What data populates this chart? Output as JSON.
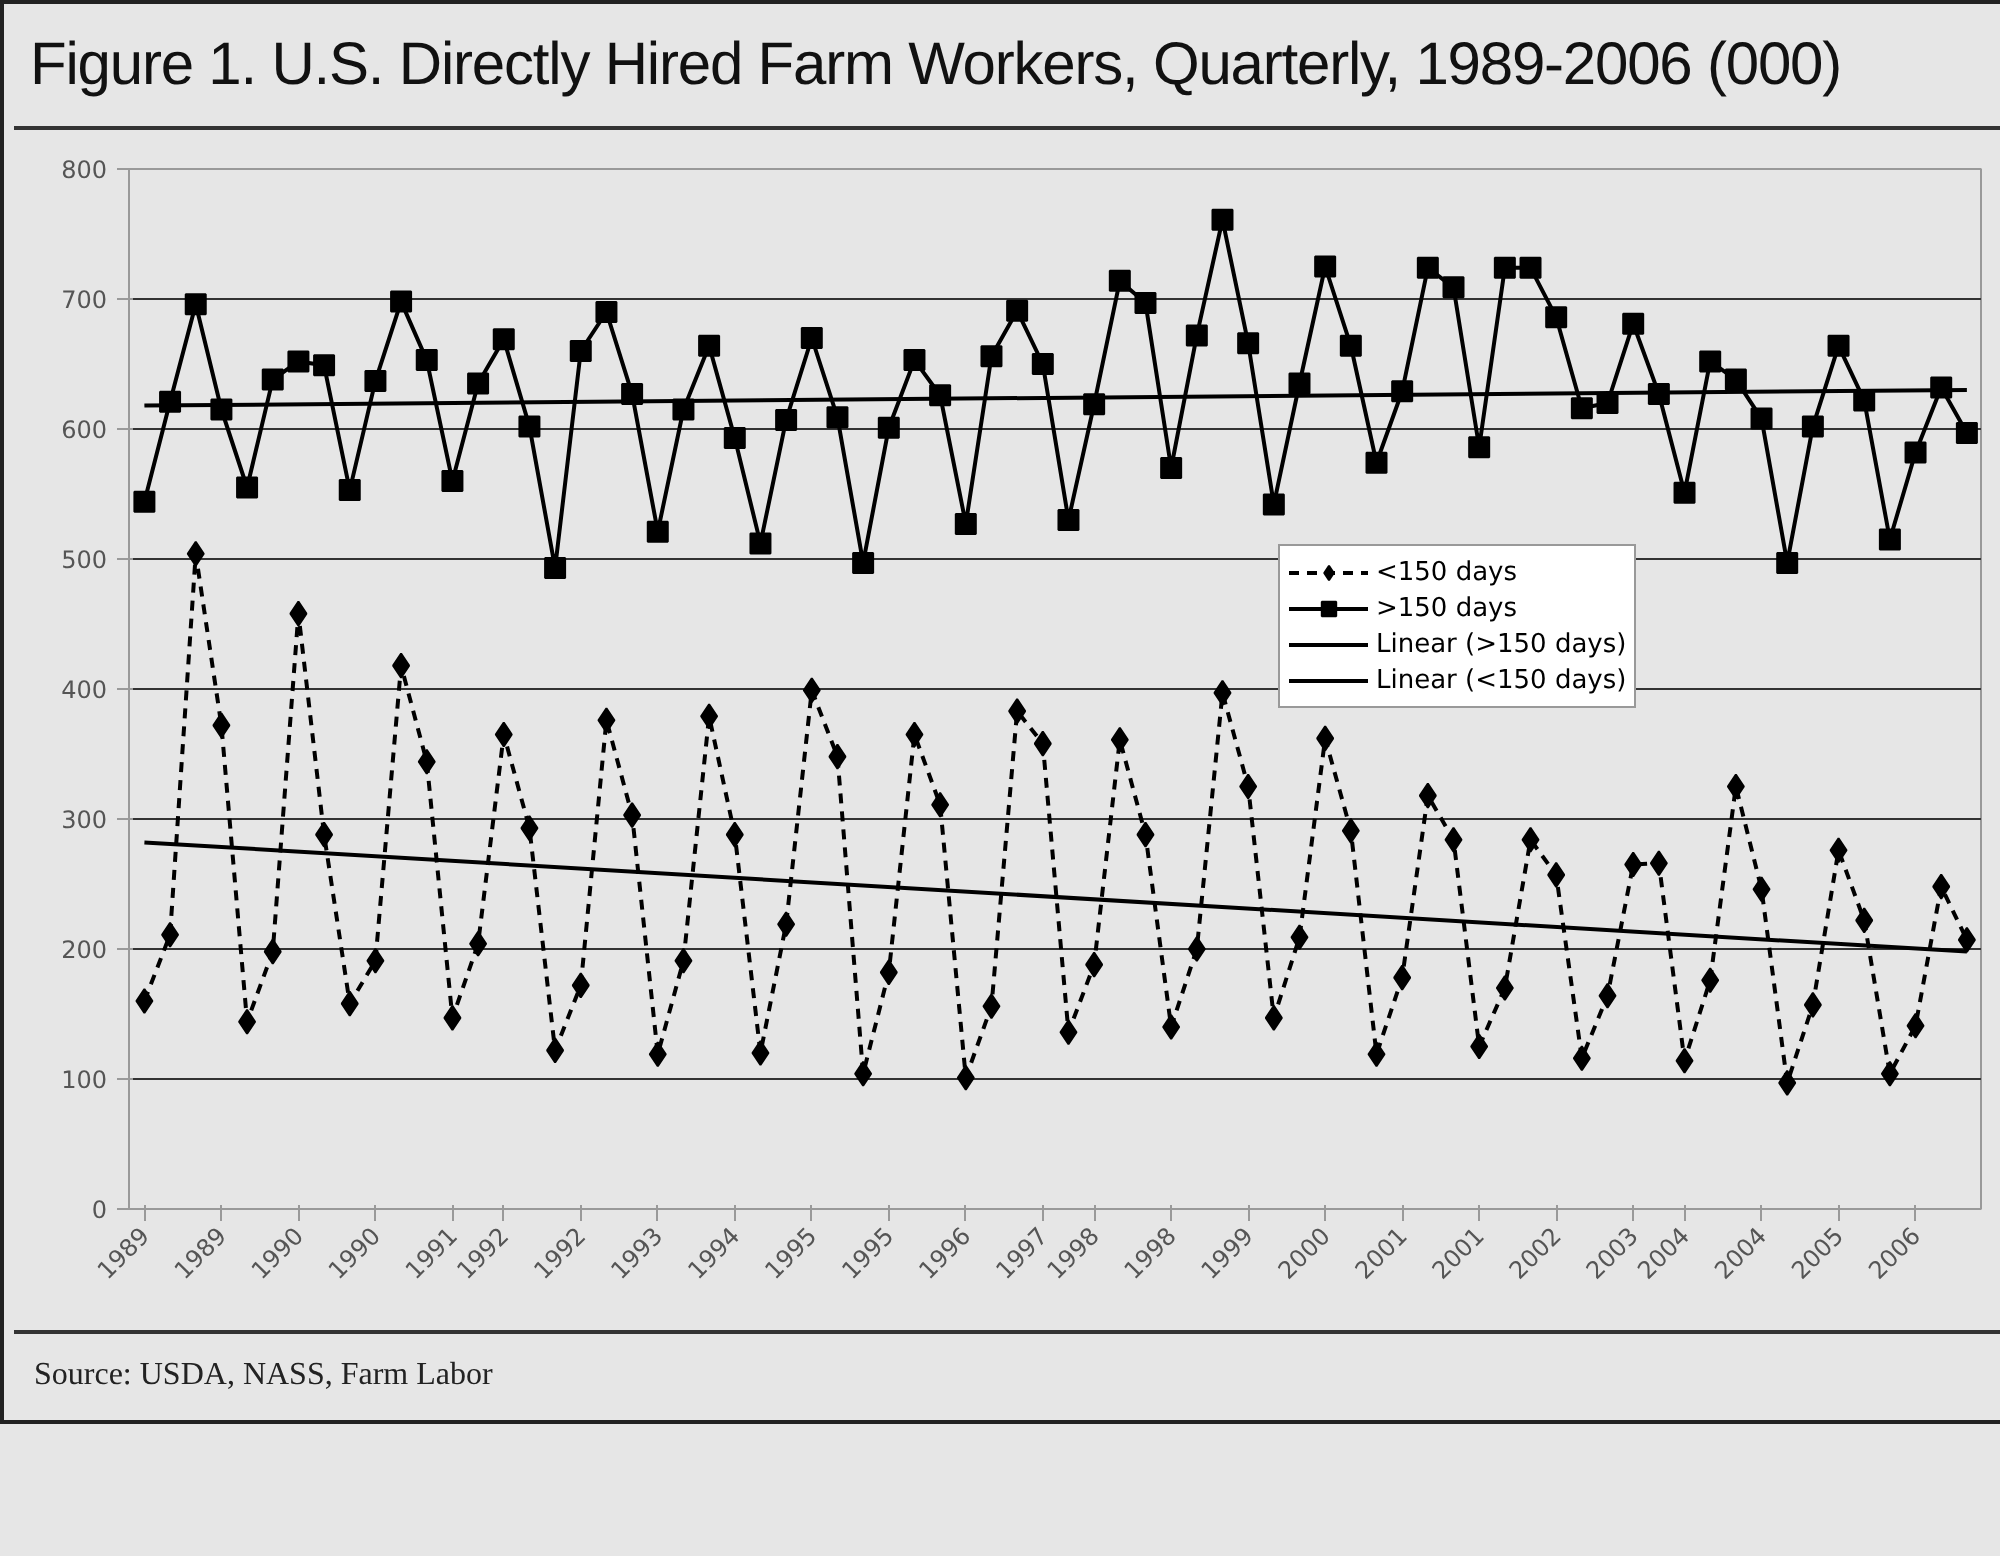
{
  "chart_data": {
    "type": "line",
    "title": "Figure 1. U.S. Directly Hired Farm Workers, Quarterly, 1989-2006 (000)",
    "categories": [
      "1989",
      null,
      null,
      "1989",
      null,
      null,
      "1990",
      null,
      null,
      "1990",
      null,
      null,
      "1991",
      null,
      "1992",
      null,
      null,
      "1992",
      null,
      null,
      "1993",
      null,
      null,
      "1994",
      null,
      null,
      "1995",
      null,
      null,
      "1995",
      null,
      null,
      "1996",
      null,
      null,
      "1997",
      null,
      "1998",
      null,
      null,
      "1998",
      null,
      null,
      "1999",
      null,
      null,
      "2000",
      null,
      null,
      "2001",
      null,
      null,
      "2001",
      null,
      null,
      "2002",
      null,
      null,
      "2003",
      null,
      "2004",
      null,
      null,
      "2004",
      null,
      null,
      "2005",
      null,
      null,
      "2006",
      null,
      null
    ],
    "series": [
      {
        "name": "<150 days",
        "color": "#000000",
        "marker": "diamond",
        "line_style": "dashed",
        "values": [
          160,
          211,
          504,
          372,
          144,
          198,
          458,
          288,
          158,
          191,
          418,
          344,
          147,
          204,
          365,
          293,
          122,
          172,
          376,
          303,
          119,
          191,
          379,
          288,
          120,
          219,
          399,
          348,
          104,
          182,
          365,
          311,
          101,
          156,
          383,
          358,
          136,
          188,
          361,
          288,
          140,
          200,
          397,
          325,
          147,
          209,
          362,
          291,
          119,
          178,
          318,
          284,
          125,
          170,
          284,
          257,
          116,
          164,
          265,
          266,
          114,
          176,
          325,
          246,
          97,
          157,
          276,
          222,
          104,
          141,
          248,
          207
        ]
      },
      {
        "name": ">150 days",
        "color": "#000000",
        "marker": "square",
        "line_style": "solid",
        "values": [
          544,
          621,
          696,
          615,
          555,
          638,
          652,
          649,
          553,
          637,
          698,
          653,
          560,
          635,
          669,
          602,
          493,
          660,
          690,
          627,
          521,
          615,
          664,
          593,
          512,
          607,
          670,
          609,
          497,
          601,
          653,
          626,
          527,
          656,
          691,
          650,
          530,
          619,
          714,
          697,
          570,
          672,
          761,
          666,
          542,
          635,
          725,
          664,
          574,
          629,
          724,
          709,
          586,
          724,
          724,
          686,
          616,
          620,
          681,
          627,
          551,
          652,
          638,
          608,
          497,
          602,
          664,
          622,
          515,
          582,
          632,
          597
        ]
      },
      {
        "name": "Linear (>150 days)",
        "color": "#000000",
        "marker": "none",
        "line_style": "solid",
        "values": [
          618,
          null,
          null,
          null,
          null,
          null,
          null,
          null,
          null,
          null,
          null,
          null,
          null,
          null,
          null,
          null,
          null,
          null,
          null,
          null,
          null,
          null,
          null,
          null,
          null,
          null,
          null,
          null,
          null,
          null,
          null,
          null,
          null,
          null,
          null,
          null,
          null,
          null,
          null,
          null,
          null,
          null,
          null,
          null,
          null,
          null,
          null,
          null,
          null,
          null,
          null,
          null,
          null,
          null,
          null,
          null,
          null,
          null,
          null,
          null,
          null,
          null,
          null,
          null,
          null,
          null,
          null,
          null,
          null,
          null,
          null,
          630
        ]
      },
      {
        "name": "Linear (<150 days)",
        "color": "#000000",
        "marker": "none",
        "line_style": "solid",
        "values": [
          282,
          null,
          null,
          null,
          null,
          null,
          null,
          null,
          null,
          null,
          null,
          null,
          null,
          null,
          null,
          null,
          null,
          null,
          null,
          null,
          null,
          null,
          null,
          null,
          null,
          null,
          null,
          null,
          null,
          null,
          null,
          null,
          null,
          null,
          null,
          null,
          null,
          null,
          null,
          null,
          null,
          null,
          null,
          null,
          null,
          null,
          null,
          null,
          null,
          null,
          null,
          null,
          null,
          null,
          null,
          null,
          null,
          null,
          null,
          null,
          null,
          null,
          null,
          null,
          null,
          null,
          null,
          null,
          null,
          null,
          null,
          198
        ]
      }
    ],
    "ylim": [
      0,
      800
    ],
    "yticks": [
      0,
      100,
      200,
      300,
      400,
      500,
      600,
      700,
      800
    ],
    "grid": "y",
    "legend": "right",
    "annotations": [
      "Source: USDA, NASS, Farm Labor"
    ]
  }
}
